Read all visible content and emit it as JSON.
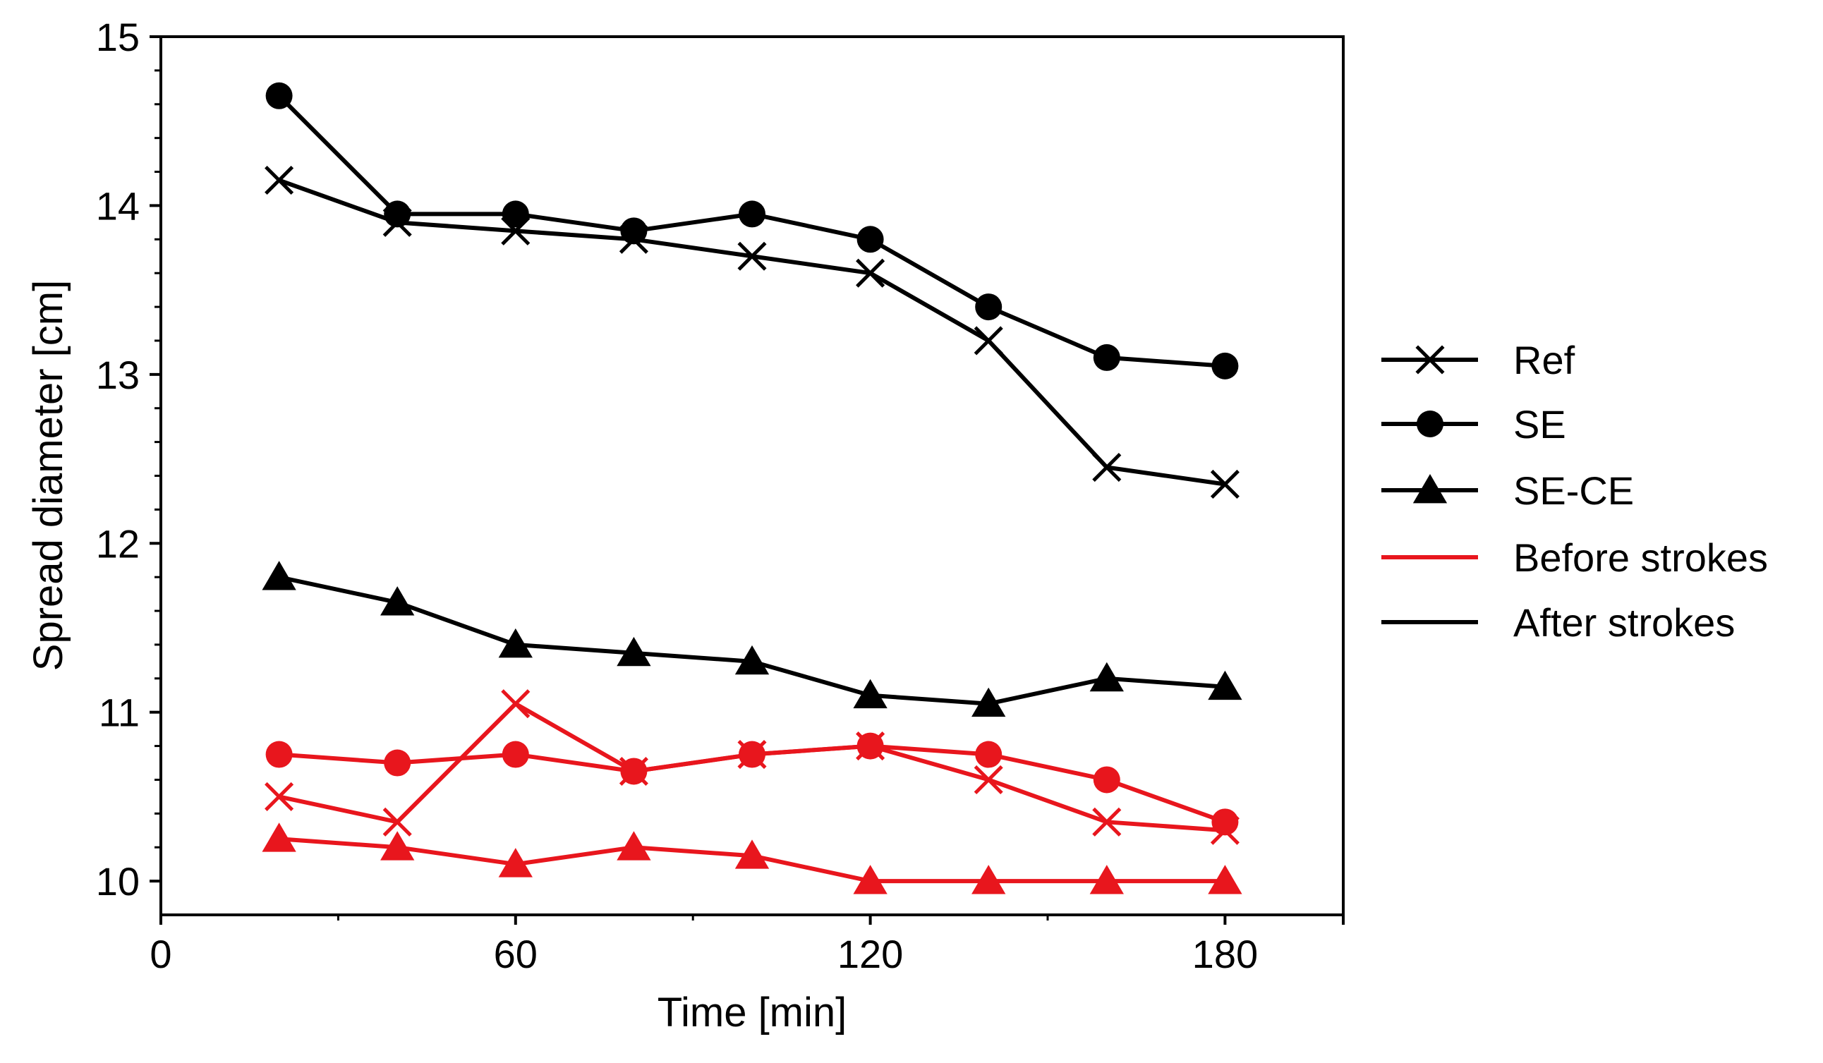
{
  "chart_data": {
    "type": "line",
    "title": "",
    "xlabel": "Time [min]",
    "ylabel": "Spread diameter [cm]",
    "xlim": [
      0,
      200
    ],
    "ylim": [
      9.8,
      15
    ],
    "xticks": [
      0,
      60,
      120,
      180
    ],
    "yticks": [
      10,
      11,
      12,
      13,
      14,
      15
    ],
    "grid": false,
    "legend_position": "right",
    "colors": {
      "before": "#e8161d",
      "after": "#000000"
    },
    "x": [
      20,
      40,
      60,
      80,
      100,
      120,
      140,
      160,
      180
    ],
    "series": [
      {
        "name": "Ref (after strokes)",
        "marker": "x",
        "group": "after",
        "values": [
          14.15,
          13.9,
          13.85,
          13.8,
          13.7,
          13.6,
          13.2,
          12.45,
          12.35
        ]
      },
      {
        "name": "SE (after strokes)",
        "marker": "circle",
        "group": "after",
        "values": [
          14.65,
          13.95,
          13.95,
          13.85,
          13.95,
          13.8,
          13.4,
          13.1,
          13.05
        ]
      },
      {
        "name": "SE-CE (after strokes)",
        "marker": "triangle",
        "group": "after",
        "values": [
          11.8,
          11.65,
          11.4,
          11.35,
          11.3,
          11.1,
          11.05,
          11.2,
          11.15
        ]
      },
      {
        "name": "Ref (before strokes)",
        "marker": "x",
        "group": "before",
        "values": [
          10.5,
          10.35,
          11.05,
          10.65,
          10.75,
          10.8,
          10.6,
          10.35,
          10.3
        ]
      },
      {
        "name": "SE (before strokes)",
        "marker": "circle",
        "group": "before",
        "values": [
          10.75,
          10.7,
          10.75,
          10.65,
          10.75,
          10.8,
          10.75,
          10.6,
          10.35
        ]
      },
      {
        "name": "SE-CE (before strokes)",
        "marker": "triangle",
        "group": "before",
        "values": [
          10.25,
          10.2,
          10.1,
          10.2,
          10.15,
          10.0,
          10.0,
          10.0,
          10.0
        ]
      }
    ],
    "legend": [
      {
        "label": "Ref",
        "marker": "x",
        "group": "after"
      },
      {
        "label": "SE",
        "marker": "circle",
        "group": "after"
      },
      {
        "label": "SE-CE",
        "marker": "triangle",
        "group": "after"
      },
      {
        "label": "Before strokes",
        "marker": "none",
        "group": "before"
      },
      {
        "label": "After strokes",
        "marker": "none",
        "group": "after"
      }
    ]
  }
}
